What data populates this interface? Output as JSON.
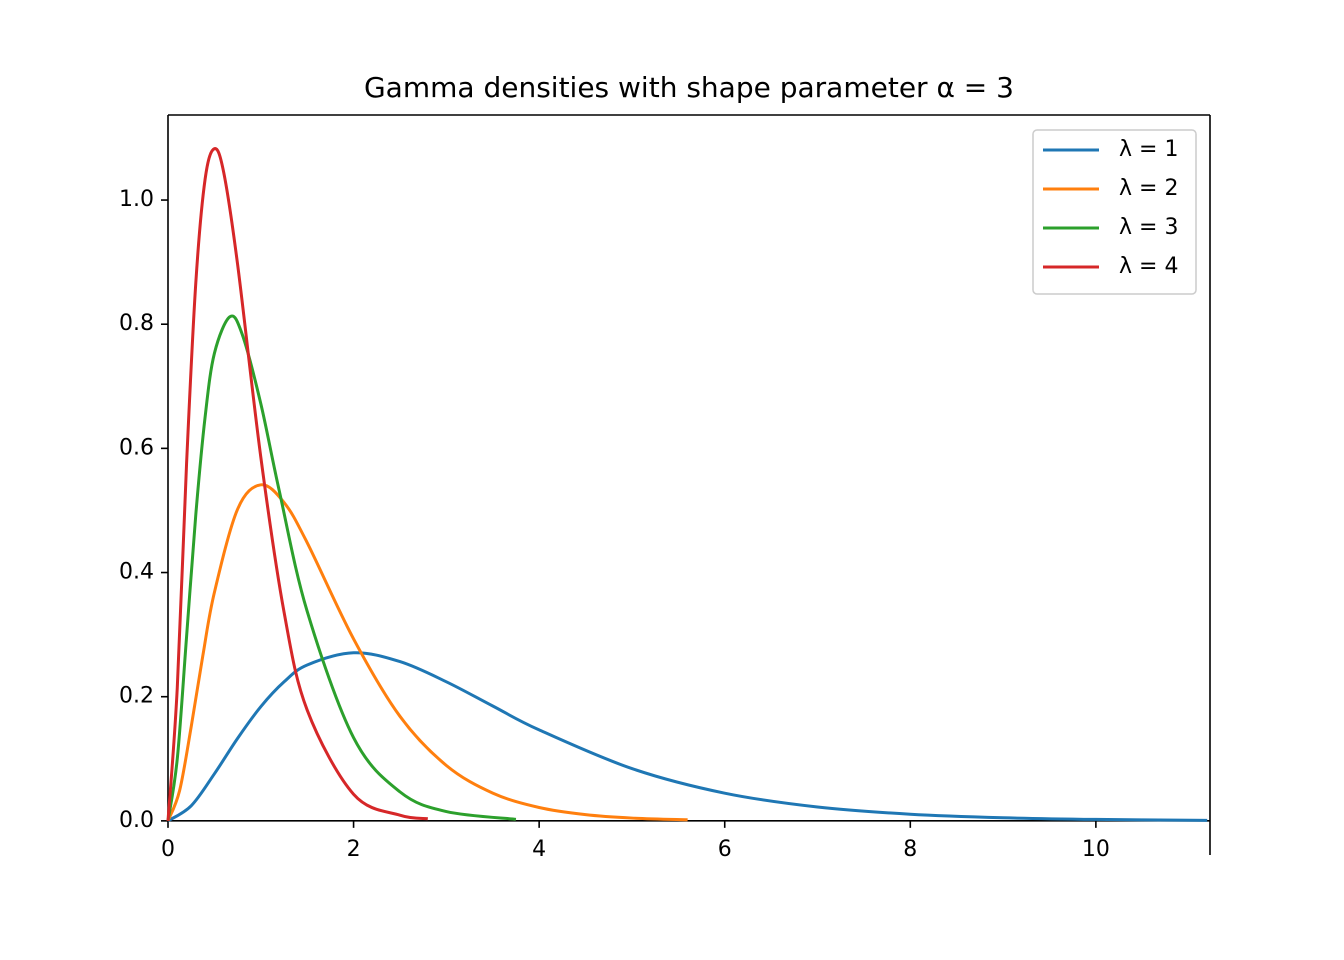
{
  "chart_data": {
    "type": "line",
    "title": "Gamma densities with shape parameter α = 3",
    "xlim": [
      0,
      11.23
    ],
    "ylim": [
      -0.055,
      1.137
    ],
    "xticks": [
      0,
      2,
      4,
      6,
      8,
      10
    ],
    "yticks": [
      {
        "value": 0,
        "label": "0.0"
      },
      0.2,
      0.4,
      0.6,
      0.8,
      {
        "value": 1,
        "label": "1.0"
      }
    ],
    "legend": "upper right",
    "series": [
      {
        "name": "λ = 1",
        "color": "#1f77b4",
        "x": [
          0,
          0.25,
          0.5,
          0.75,
          1,
          1.25,
          1.5,
          2,
          2.5,
          3,
          3.5,
          4,
          5,
          6,
          7,
          8,
          9,
          10,
          11.2
        ],
        "values": [
          0,
          0.0243,
          0.0758,
          0.1329,
          0.1839,
          0.2238,
          0.251,
          0.2707,
          0.2565,
          0.224,
          0.185,
          0.1465,
          0.0842,
          0.0446,
          0.0223,
          0.0107,
          0.005,
          0.0023,
          0.00086
        ]
      },
      {
        "name": "λ = 2",
        "color": "#ff7f0e",
        "x": [
          0,
          0.125,
          0.25,
          0.375,
          0.5,
          0.75,
          1,
          1.25,
          1.5,
          2,
          2.5,
          3,
          3.5,
          4,
          4.5,
          5,
          5.6
        ],
        "values": [
          0,
          0.0487,
          0.1516,
          0.2657,
          0.3679,
          0.502,
          0.5413,
          0.513,
          0.4481,
          0.2931,
          0.1684,
          0.0892,
          0.0447,
          0.0215,
          0.01,
          0.0045,
          0.0017
        ]
      },
      {
        "name": "λ = 3",
        "color": "#2ca02c",
        "x": [
          0,
          0.1,
          0.2,
          0.3,
          0.4,
          0.5,
          0.667,
          0.8,
          1,
          1.2,
          1.5,
          2,
          2.5,
          3,
          3.75
        ],
        "values": [
          0,
          0.1,
          0.2964,
          0.494,
          0.6506,
          0.753,
          0.812,
          0.7837,
          0.6721,
          0.5311,
          0.3375,
          0.1339,
          0.0467,
          0.015,
          0.0025
        ]
      },
      {
        "name": "λ = 4",
        "color": "#d62728",
        "x": [
          0,
          0.1,
          0.2,
          0.3,
          0.4,
          0.5,
          0.6,
          0.75,
          1,
          1.25,
          1.5,
          2,
          2.5,
          2.8
        ],
        "values": [
          0,
          0.2145,
          0.5751,
          0.8675,
          1.0337,
          1.0827,
          1.0449,
          0.8964,
          0.5861,
          0.3369,
          0.1785,
          0.0429,
          0.0091,
          0.0034
        ]
      }
    ]
  }
}
